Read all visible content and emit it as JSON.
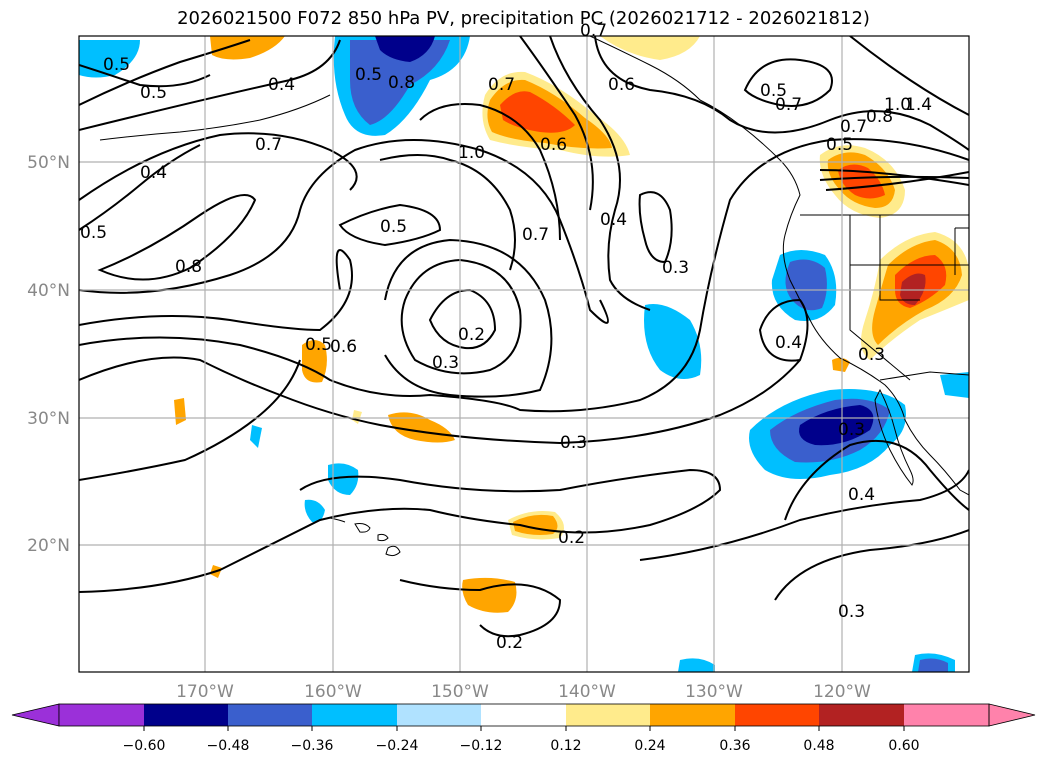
{
  "title": "2026021500 F072 850 hPa PV, precipitation PC (2026021712 - 2026021812)",
  "map": {
    "extent": {
      "lon_min": -180,
      "lon_max": -110,
      "lat_min": 10,
      "lat_max": 60
    },
    "lat_ticks": [
      {
        "value": 50,
        "label": "50°N"
      },
      {
        "value": 40,
        "label": "40°N"
      },
      {
        "value": 30,
        "label": "30°N"
      },
      {
        "value": 20,
        "label": "20°N"
      }
    ],
    "lon_ticks": [
      {
        "value": -170,
        "label": "170°W"
      },
      {
        "value": -160,
        "label": "160°W"
      },
      {
        "value": -150,
        "label": "150°W"
      },
      {
        "value": -140,
        "label": "140°W"
      },
      {
        "value": -130,
        "label": "130°W"
      },
      {
        "value": -120,
        "label": "120°W"
      }
    ],
    "contour_labels": [
      "0.5",
      "0.5",
      "0.4",
      "0.4",
      "0.7",
      "0.8",
      "0.5",
      "1.0",
      "0.6",
      "0.7",
      "0.4",
      "0.3",
      "0.6",
      "0.7",
      "0.5",
      "0.5",
      "0.2",
      "0.3",
      "0.6",
      "0.3",
      "0.2",
      "0.2",
      "0.3",
      "0.4",
      "0.3",
      "0.4",
      "0.3",
      "0.7",
      "0.8",
      "1.0",
      "1.4",
      "0.5",
      "0.7",
      "0.8",
      "0.5",
      "0.5",
      "0.7"
    ]
  },
  "colorbar": {
    "colors": [
      "#9b30d9",
      "#00008b",
      "#3a5fcd",
      "#00bfff",
      "#b0e2ff",
      "#ffffff",
      "#ffeb8c",
      "#ffa500",
      "#ff4500",
      "#b22222",
      "#ff82ab"
    ],
    "ticks": [
      "−0.60",
      "−0.48",
      "−0.36",
      "−0.24",
      "−0.12",
      "0.12",
      "0.24",
      "0.36",
      "0.48",
      "0.60"
    ]
  }
}
